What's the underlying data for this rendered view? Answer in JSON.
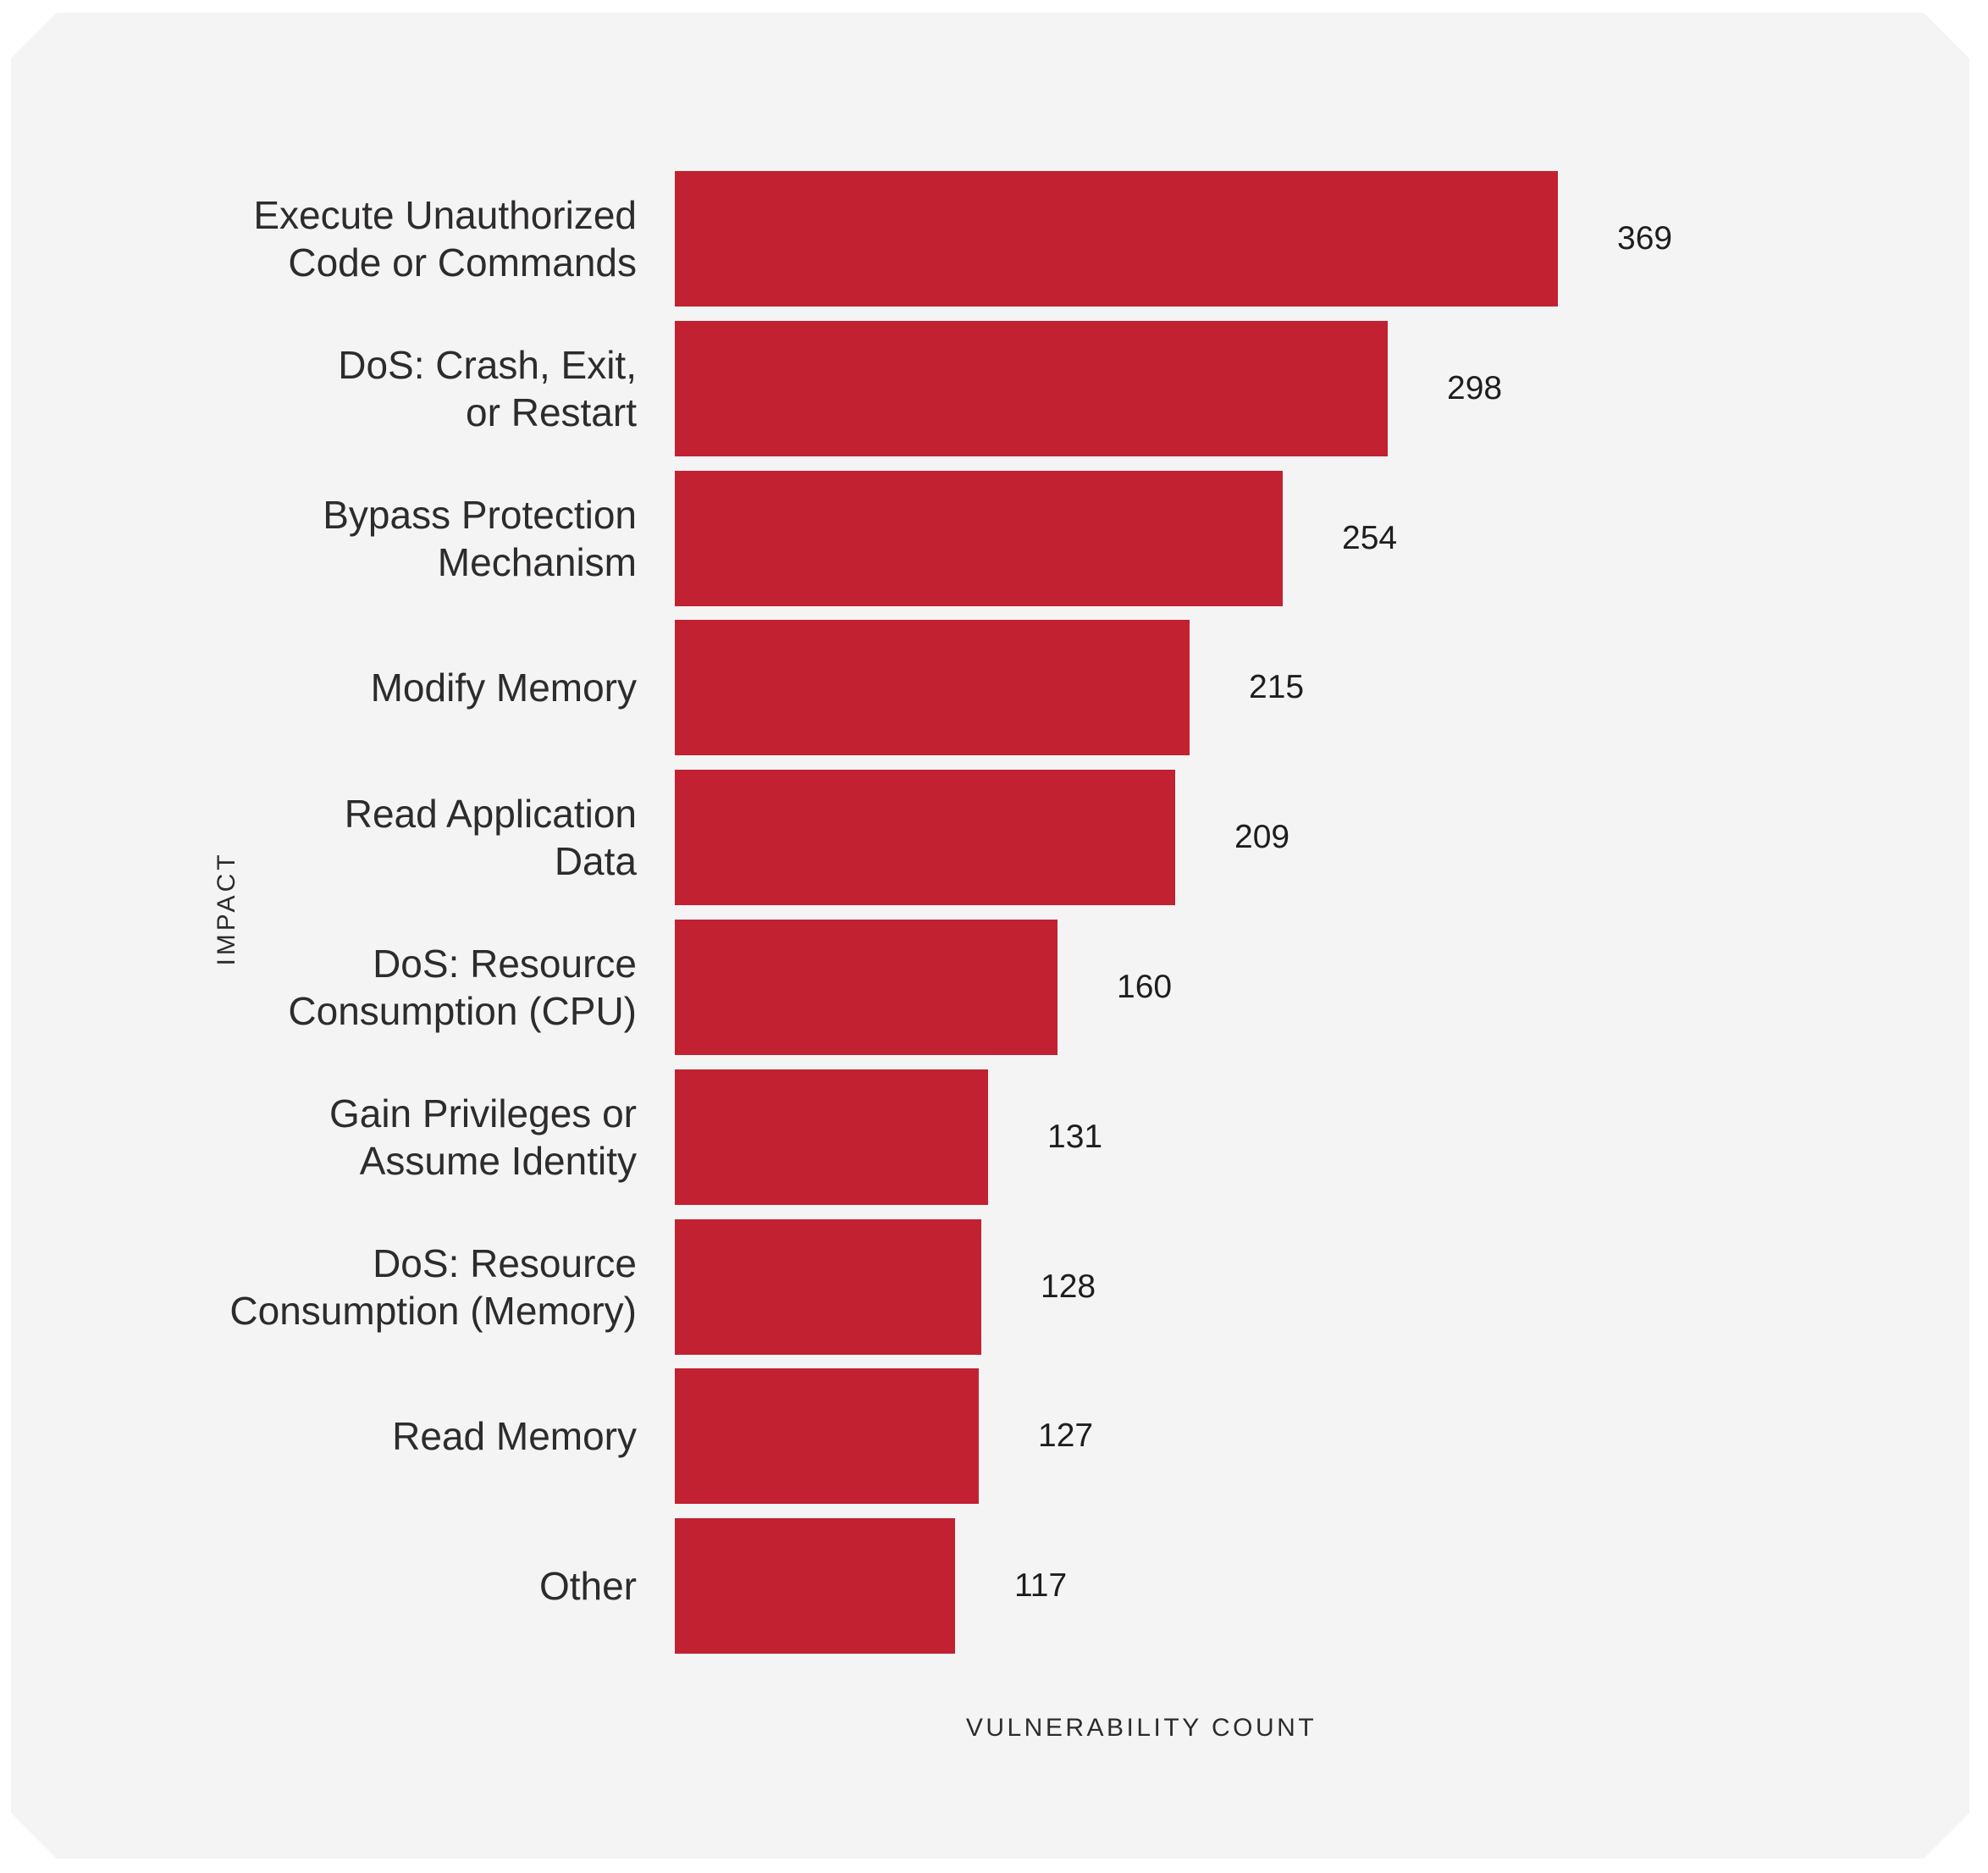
{
  "chart_data": {
    "type": "bar",
    "orientation": "horizontal",
    "title": "",
    "xlabel": "VULNERABILITY COUNT",
    "ylabel": "IMPACT",
    "categories": [
      "Execute Unauthorized\nCode or Commands",
      "DoS: Crash, Exit,\nor Restart",
      "Bypass Protection\nMechanism",
      "Modify Memory",
      "Read Application\nData",
      "DoS: Resource\nConsumption (CPU)",
      "Gain Privileges or\nAssume Identity",
      "DoS: Resource\nConsumption (Memory)",
      "Read Memory",
      "Other"
    ],
    "values": [
      369,
      298,
      254,
      215,
      209,
      160,
      131,
      128,
      127,
      117
    ],
    "xlim": [
      0,
      390
    ],
    "grid": false,
    "legend": false,
    "bar_color": "#c22132"
  },
  "colors": {
    "page_background": "#ffffff",
    "panel_background": "#f4f4f4",
    "bar": "#c22132",
    "text": "#2d2b2c"
  }
}
